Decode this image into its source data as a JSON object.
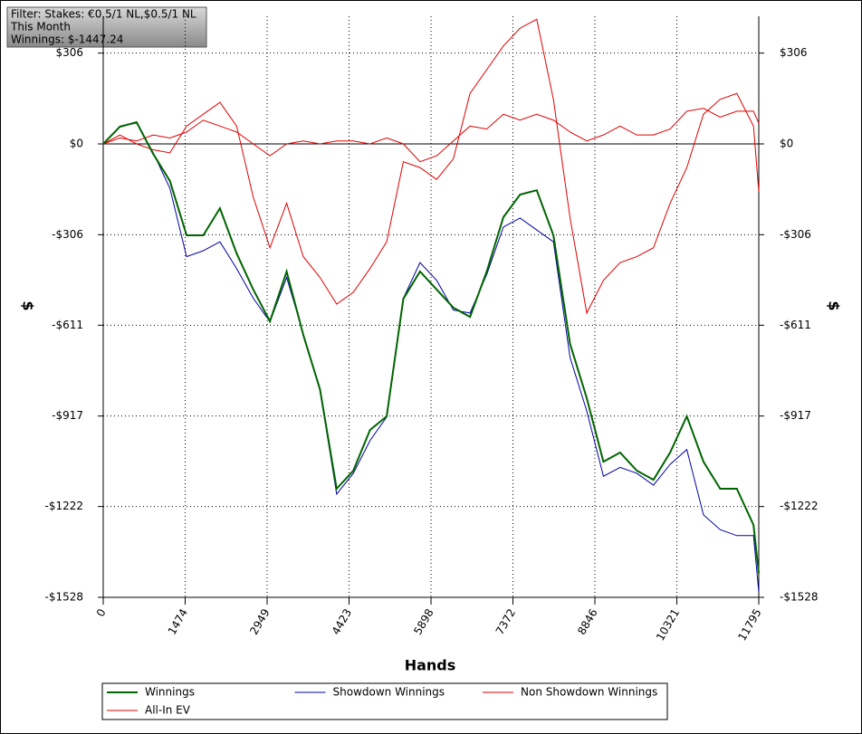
{
  "chart_data": {
    "type": "line",
    "annotations": [
      "Filter: Stakes: €0.5/1 NL,$0.5/1 NL",
      "This Month",
      "Winnings: $-1447.24"
    ],
    "xlabel": "Hands",
    "ylabel": "$",
    "y2label": "$",
    "x": [
      0,
      300,
      600,
      900,
      1200,
      1500,
      1800,
      2100,
      2400,
      2700,
      3000,
      3300,
      3600,
      3900,
      4200,
      4500,
      4800,
      5100,
      5400,
      5700,
      6000,
      6300,
      6600,
      6900,
      7200,
      7500,
      7800,
      8100,
      8400,
      8700,
      9000,
      9300,
      9600,
      9900,
      10200,
      10500,
      10800,
      11100,
      11400,
      11700,
      11795
    ],
    "xlim": [
      0,
      11795
    ],
    "xticks": [
      0,
      1474,
      2949,
      4423,
      5898,
      7372,
      8846,
      10321,
      11795
    ],
    "ylim": [
      -1528,
      430
    ],
    "yticks": [
      {
        "value": 306,
        "label": "$306"
      },
      {
        "value": 0,
        "label": "$0"
      },
      {
        "value": -306,
        "label": "-$306"
      },
      {
        "value": -611,
        "label": "-$611"
      },
      {
        "value": -917,
        "label": "-$917"
      },
      {
        "value": -1222,
        "label": "-$1222"
      },
      {
        "value": -1528,
        "label": "-$1528"
      }
    ],
    "grid": true,
    "legend": "bottom",
    "series": [
      {
        "name": "Winnings",
        "color": "#006400",
        "values": [
          0,
          58,
          73,
          -34,
          -125,
          -308,
          -308,
          -217,
          -369,
          -491,
          -598,
          -430,
          -644,
          -827,
          -1162,
          -1101,
          -964,
          -918,
          -522,
          -430,
          -491,
          -552,
          -583,
          -430,
          -247,
          -171,
          -156,
          -308,
          -674,
          -857,
          -1071,
          -1040,
          -1101,
          -1132,
          -1040,
          -918,
          -1071,
          -1162,
          -1162,
          -1284,
          -1447
        ]
      },
      {
        "name": "Showdown Winnings",
        "color": "#0000a0",
        "values": [
          0,
          60,
          70,
          -30,
          -150,
          -380,
          -360,
          -330,
          -420,
          -520,
          -600,
          -450,
          -640,
          -830,
          -1180,
          -1110,
          -1000,
          -920,
          -520,
          -400,
          -460,
          -560,
          -570,
          -440,
          -280,
          -250,
          -290,
          -330,
          -720,
          -900,
          -1120,
          -1090,
          -1110,
          -1150,
          -1080,
          -1030,
          -1250,
          -1300,
          -1320,
          -1320,
          -1510
        ]
      },
      {
        "name": "Non Showdown Winnings",
        "color": "#e00000",
        "values": [
          0,
          20,
          10,
          30,
          20,
          40,
          80,
          60,
          40,
          0,
          -40,
          0,
          10,
          0,
          10,
          10,
          0,
          20,
          0,
          -60,
          -40,
          10,
          60,
          50,
          100,
          80,
          100,
          80,
          40,
          10,
          30,
          60,
          30,
          30,
          50,
          110,
          120,
          90,
          110,
          110,
          70
        ]
      },
      {
        "name": "All-In EV",
        "color": "#e00000",
        "values": [
          0,
          30,
          0,
          -20,
          -30,
          60,
          100,
          140,
          60,
          -180,
          -350,
          -200,
          -380,
          -450,
          -540,
          -500,
          -420,
          -330,
          -60,
          -80,
          -120,
          -50,
          170,
          250,
          330,
          390,
          420,
          150,
          -250,
          -570,
          -460,
          -400,
          -380,
          -350,
          -200,
          -80,
          100,
          150,
          170,
          60,
          -160
        ]
      }
    ]
  }
}
